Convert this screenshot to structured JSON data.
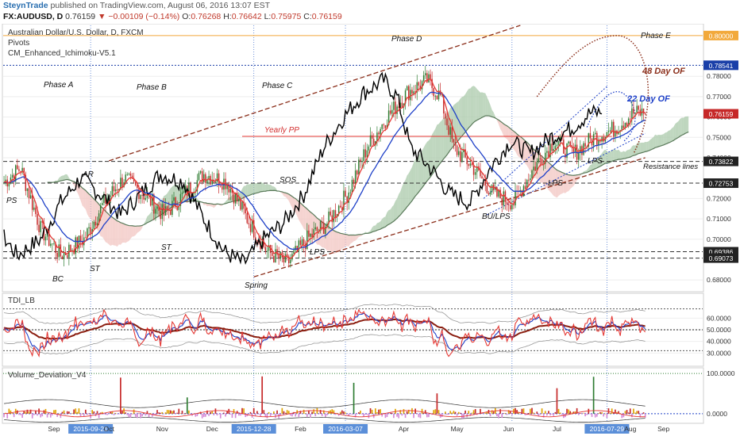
{
  "header": {
    "user": "SteynTrade",
    "published": "published on TradingView.com, August 06, 2016 13:07 EST",
    "symbol": "FX:AUDUSD, D",
    "price": "0.76159",
    "change": "−0.00109 (−0.14%)",
    "open_label": "O:",
    "open": "0.76268",
    "high_label": "H:",
    "high": "0.76642",
    "low_label": "L:",
    "low": "0.75975",
    "close_label": "C:",
    "close": "0.76159"
  },
  "legend": {
    "title": "Australian Dollar/U.S. Dollar, D, FXCM",
    "line2": "Pivots",
    "line3": "CM_Enhanced_Ichimoku-V5.1"
  },
  "annotations": {
    "phase_a": "Phase A",
    "phase_b": "Phase B",
    "phase_c": "Phase C",
    "phase_d": "Phase D",
    "phase_e": "Phase E",
    "ps": "PS",
    "ar": "AR",
    "bc": "BC",
    "st1": "ST",
    "st2": "ST",
    "sos": "SOS",
    "lps1": "LPS",
    "spring": "Spring",
    "bu_lps": "BU/LPS",
    "lps2": "LPS",
    "lps3": "LPS",
    "yearly_pp": "Yearly PP",
    "day48": "48 Day OF",
    "day22": "22 Day OF",
    "resistance": "Resistance lines"
  },
  "colors": {
    "up": "#2e7d32",
    "down": "#c62828",
    "black_line": "#000000",
    "red_line": "#e53935",
    "blue_line": "#1e40c8",
    "channel": "#8b2e1a",
    "kumo_bull": "#a8c8a8",
    "kumo_bear": "#f2c4c0",
    "price_tag": "#1a3fa8"
  },
  "chart_data": [
    {
      "type": "candlestick",
      "title": "Australian Dollar/U.S. Dollar, D, FXCM",
      "ylim": [
        0.675,
        0.805
      ],
      "y_ticks": [
        "0.80000",
        "0.78541",
        "0.78000",
        "0.77000",
        "0.76000",
        "0.75000",
        "0.74000",
        "0.73822",
        "0.72753",
        "0.72000",
        "0.71000",
        "0.70000",
        "0.69386",
        "0.69073",
        "0.68000"
      ],
      "highlighted_levels": [
        0.8,
        0.78541,
        0.73822,
        0.72753,
        0.69386,
        0.69073
      ],
      "x_ticks": [
        "Sep",
        "2015-09-21",
        "Oct",
        "Nov",
        "Dec",
        "2015-12-28",
        "Feb",
        "2016-03-07",
        "Apr",
        "May",
        "Jun",
        "Jul",
        "2016-07-29",
        "Aug",
        "Sep"
      ],
      "last_close": 0.76159,
      "price_anchors": [
        [
          0,
          0.728
        ],
        [
          10,
          0.735
        ],
        [
          22,
          0.705
        ],
        [
          34,
          0.692
        ],
        [
          48,
          0.7
        ],
        [
          60,
          0.718
        ],
        [
          72,
          0.73
        ],
        [
          84,
          0.722
        ],
        [
          96,
          0.712
        ],
        [
          108,
          0.722
        ],
        [
          120,
          0.732
        ],
        [
          134,
          0.728
        ],
        [
          146,
          0.71
        ],
        [
          158,
          0.694
        ],
        [
          170,
          0.688
        ],
        [
          182,
          0.7
        ],
        [
          194,
          0.708
        ],
        [
          206,
          0.722
        ],
        [
          218,
          0.745
        ],
        [
          230,
          0.76
        ],
        [
          242,
          0.772
        ],
        [
          254,
          0.778
        ],
        [
          262,
          0.77
        ],
        [
          270,
          0.745
        ],
        [
          282,
          0.735
        ],
        [
          294,
          0.722
        ],
        [
          306,
          0.718
        ],
        [
          318,
          0.735
        ],
        [
          330,
          0.748
        ],
        [
          342,
          0.742
        ],
        [
          354,
          0.75
        ],
        [
          366,
          0.754
        ],
        [
          378,
          0.762
        ],
        [
          385,
          0.762
        ]
      ]
    },
    {
      "type": "line",
      "title": "TDI_LB",
      "ylim": [
        20,
        80
      ],
      "y_ticks": [
        "60.0000",
        "50.0000",
        "40.0000",
        "30.0000"
      ],
      "x_ticks": [
        "Sep",
        "2015-09-21",
        "Oct",
        "Nov",
        "Dec",
        "2015-12-28",
        "Feb",
        "2016-03-07",
        "Apr",
        "May",
        "Jun",
        "Jul",
        "2016-07-29",
        "Aug",
        "Sep"
      ]
    },
    {
      "type": "bar",
      "title": "Volume_Deviation_V4",
      "ylim": [
        -20,
        110
      ],
      "y_ticks": [
        "100.0000",
        "0.0000"
      ],
      "x_ticks": [
        "Sep",
        "2015-09-21",
        "Oct",
        "Nov",
        "Dec",
        "2015-12-28",
        "Feb",
        "2016-03-07",
        "Apr",
        "May",
        "Jun",
        "Jul",
        "2016-07-29",
        "Aug",
        "Sep"
      ]
    }
  ]
}
